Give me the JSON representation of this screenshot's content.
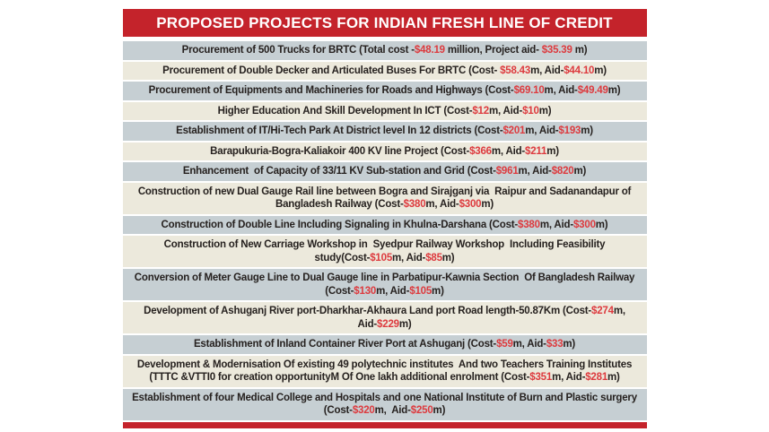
{
  "header": {
    "title": "PROPOSED PROJECTS FOR INDIAN FRESH LINE OF CREDIT"
  },
  "colors": {
    "header_red": "#c4232b",
    "amount_red": "#dd3a3e",
    "row_gray": "#c6cfd3",
    "row_cream": "#ece9dc",
    "text_dark": "#26211f"
  },
  "table": {
    "rows": [
      {
        "segments": [
          {
            "t": "Procurement of 500 Trucks for BRTC (Total cost -"
          },
          {
            "t": "$48.19",
            "red": true
          },
          {
            "t": " million, Project aid- "
          },
          {
            "t": "$35.39",
            "red": true
          },
          {
            "t": " m)"
          }
        ]
      },
      {
        "segments": [
          {
            "t": "Procurement of Double Decker and Articulated Buses For BRTC (Cost- "
          },
          {
            "t": "$58.43",
            "red": true
          },
          {
            "t": "m, Aid-"
          },
          {
            "t": "$44.10",
            "red": true
          },
          {
            "t": "m)"
          }
        ]
      },
      {
        "segments": [
          {
            "t": "Procurement of Equipments and Machineries for Roads and Highways (Cost-"
          },
          {
            "t": "$69.10",
            "red": true
          },
          {
            "t": "m, Aid-"
          },
          {
            "t": "$49.49",
            "red": true
          },
          {
            "t": "m)"
          }
        ]
      },
      {
        "segments": [
          {
            "t": "Higher Education And Skill Development In ICT (Cost-"
          },
          {
            "t": "$12",
            "red": true
          },
          {
            "t": "m, Aid-"
          },
          {
            "t": "$10",
            "red": true
          },
          {
            "t": "m)"
          }
        ]
      },
      {
        "segments": [
          {
            "t": "Establishment of IT/Hi-Tech Park At District level In 12 districts (Cost-"
          },
          {
            "t": "$201",
            "red": true
          },
          {
            "t": "m, Aid-"
          },
          {
            "t": "$193",
            "red": true
          },
          {
            "t": "m)"
          }
        ]
      },
      {
        "segments": [
          {
            "t": "Barapukuria-Bogra-Kaliakoir 400 KV line Project (Cost-"
          },
          {
            "t": "$366",
            "red": true
          },
          {
            "t": "m, Aid-"
          },
          {
            "t": "$211",
            "red": true
          },
          {
            "t": "m)"
          }
        ]
      },
      {
        "segments": [
          {
            "t": "Enhancement  of Capacity of 33/11 KV Sub-station and Grid (Cost-"
          },
          {
            "t": "$961",
            "red": true
          },
          {
            "t": "m, Aid-"
          },
          {
            "t": "$820",
            "red": true
          },
          {
            "t": "m)"
          }
        ]
      },
      {
        "segments": [
          {
            "t": "Construction of new Dual Gauge Rail line between Bogra and Sirajganj via  Raipur and Sadanandapur of Bangladesh Railway (Cost-"
          },
          {
            "t": "$380",
            "red": true
          },
          {
            "t": "m, Aid-"
          },
          {
            "t": "$300",
            "red": true
          },
          {
            "t": "m)"
          }
        ]
      },
      {
        "segments": [
          {
            "t": "Construction of Double Line Including Signaling in Khulna-Darshana (Cost-"
          },
          {
            "t": "$380",
            "red": true
          },
          {
            "t": "m, Aid-"
          },
          {
            "t": "$300",
            "red": true
          },
          {
            "t": "m)"
          }
        ]
      },
      {
        "segments": [
          {
            "t": "Construction of New Carriage Workshop in  Syedpur Railway Workshop  Including Feasibility study(Cost-"
          },
          {
            "t": "$105",
            "red": true
          },
          {
            "t": "m, Aid-"
          },
          {
            "t": "$85",
            "red": true
          },
          {
            "t": "m)"
          }
        ]
      },
      {
        "segments": [
          {
            "t": "Conversion of Meter Gauge Line to Dual Gauge line in Parbatipur-Kawnia Section  Of Bangladesh Railway (Cost-"
          },
          {
            "t": "$130",
            "red": true
          },
          {
            "t": "m, Aid-"
          },
          {
            "t": "$105",
            "red": true
          },
          {
            "t": "m)"
          }
        ]
      },
      {
        "segments": [
          {
            "t": "Development of Ashuganj River port-Dharkhar-Akhaura Land port Road length-50.87Km (Cost-"
          },
          {
            "t": "$274",
            "red": true
          },
          {
            "t": "m, Aid-"
          },
          {
            "t": "$229",
            "red": true
          },
          {
            "t": "m)"
          }
        ]
      },
      {
        "segments": [
          {
            "t": "Establishment of Inland Container River Port at Ashuganj (Cost-"
          },
          {
            "t": "$59",
            "red": true
          },
          {
            "t": "m, Aid-"
          },
          {
            "t": "$33",
            "red": true
          },
          {
            "t": "m)"
          }
        ]
      },
      {
        "segments": [
          {
            "t": "Development & Modernisation Of existing 49 polytechnic institutes  And two Teachers Training Institutes (TTTC &VTTI0 for creation opportunityM Of One lakh additional enrolment (Cost-"
          },
          {
            "t": "$351",
            "red": true
          },
          {
            "t": "m, Aid-"
          },
          {
            "t": "$281",
            "red": true
          },
          {
            "t": "m)"
          }
        ]
      },
      {
        "segments": [
          {
            "t": "Establishment of four Medical College and Hospitals and one National Institute of Burn and Plastic surgery (Cost-"
          },
          {
            "t": "$320",
            "red": true
          },
          {
            "t": "m,  Aid-"
          },
          {
            "t": "$250",
            "red": true
          },
          {
            "t": "m)"
          }
        ]
      }
    ]
  },
  "chart_data": {
    "type": "table",
    "title": "PROPOSED PROJECTS FOR INDIAN FRESH LINE OF CREDIT",
    "columns": [
      "project",
      "cost_usd_million",
      "aid_usd_million"
    ],
    "rows": [
      [
        "Procurement of 500 Trucks for BRTC",
        48.19,
        35.39
      ],
      [
        "Procurement of Double Decker and Articulated Buses For BRTC",
        58.43,
        44.1
      ],
      [
        "Procurement of Equipments and Machineries for Roads and Highways",
        69.1,
        49.49
      ],
      [
        "Higher Education And Skill Development In ICT",
        12,
        10
      ],
      [
        "Establishment of IT/Hi-Tech Park At District level In 12 districts",
        201,
        193
      ],
      [
        "Barapukuria-Bogra-Kaliakoir 400 KV line Project",
        366,
        211
      ],
      [
        "Enhancement of Capacity of 33/11 KV Sub-station and Grid",
        961,
        820
      ],
      [
        "Construction of new Dual Gauge Rail line between Bogra and Sirajganj via Raipur and Sadanandapur of Bangladesh Railway",
        380,
        300
      ],
      [
        "Construction of Double Line Including Signaling in Khulna-Darshana",
        380,
        300
      ],
      [
        "Construction of New Carriage Workshop in Syedpur Railway Workshop Including Feasibility study",
        105,
        85
      ],
      [
        "Conversion of Meter Gauge Line to Dual Gauge line in Parbatipur-Kawnia Section Of Bangladesh Railway",
        130,
        105
      ],
      [
        "Development of Ashuganj River port-Dharkhar-Akhaura Land port Road length-50.87Km",
        274,
        229
      ],
      [
        "Establishment of Inland Container River Port at Ashuganj",
        59,
        33
      ],
      [
        "Development & Modernisation Of existing 49 polytechnic institutes And two Teachers Training Institutes (TTTC &VTTI0 for creation opportunityM Of One lakh additional enrolment",
        351,
        281
      ],
      [
        "Establishment of four Medical College and Hospitals and one National Institute of Burn and Plastic surgery",
        320,
        250
      ]
    ],
    "layout": {
      "row_striping": [
        "#c6cfd3",
        "#ece9dc"
      ],
      "header_bg": "#c4232b",
      "amount_color": "#dd3a3e",
      "legend": "none",
      "grid": "off"
    }
  }
}
